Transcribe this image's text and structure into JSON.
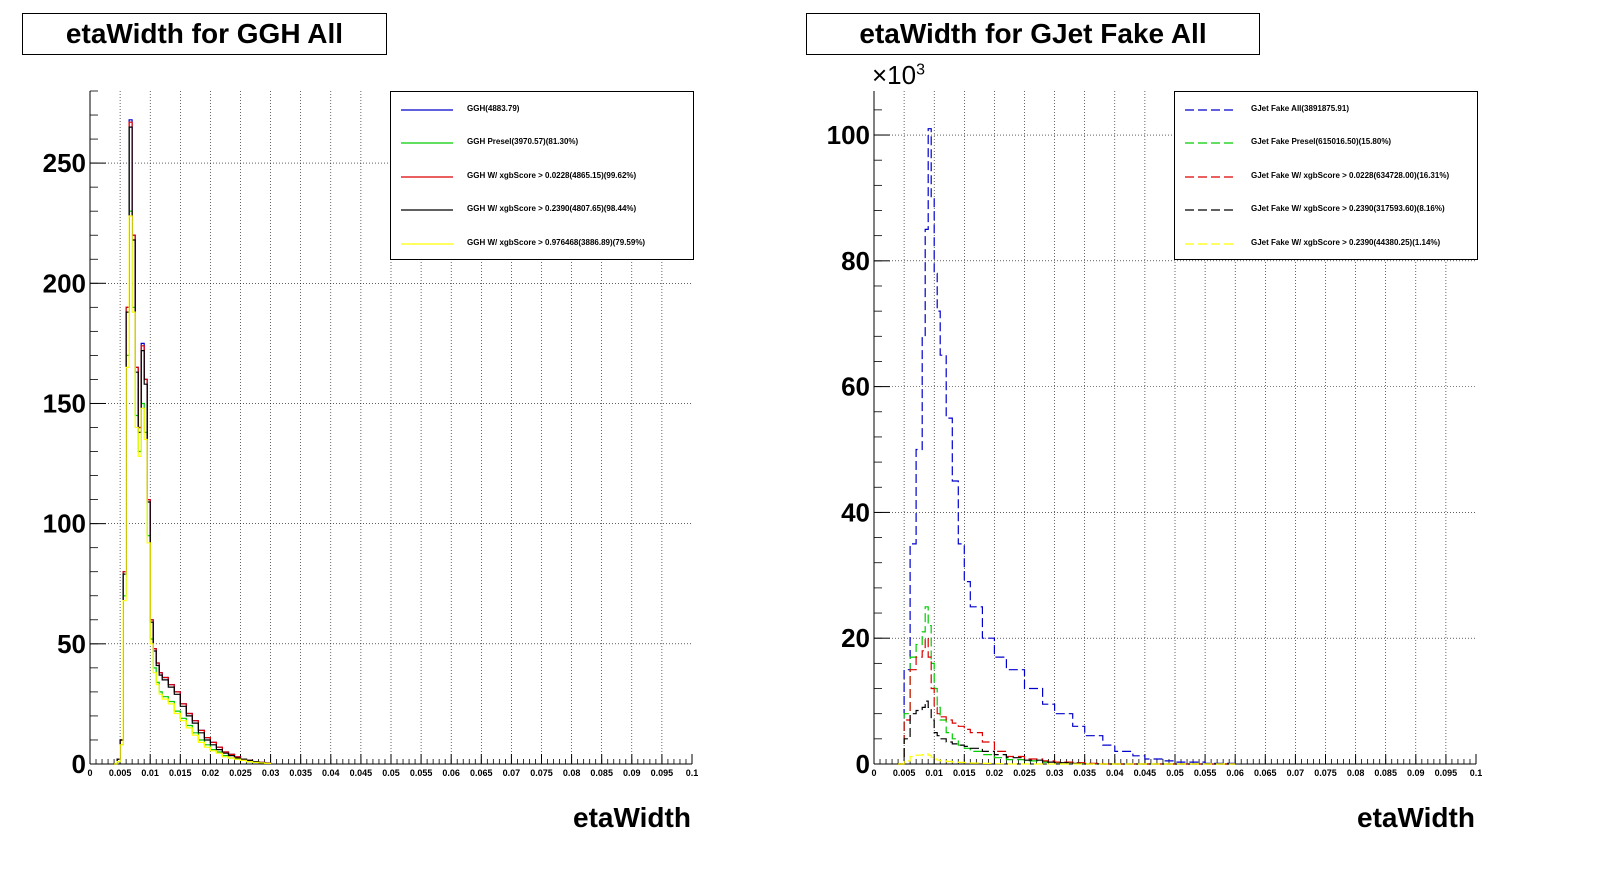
{
  "chart_data": [
    {
      "type": "line",
      "title": "etaWidth for GGH All",
      "xlabel": "etaWidth",
      "ylabel": "",
      "xlim": [
        0,
        0.1
      ],
      "ylim": [
        0,
        280
      ],
      "y_ticks": [
        0,
        50,
        100,
        150,
        200,
        250
      ],
      "x_ticks": [
        "0",
        "0.005",
        "0.01",
        "0.015",
        "0.02",
        "0.025",
        "0.03",
        "0.035",
        "0.04",
        "0.045",
        "0.05",
        "0.055",
        "0.06",
        "0.065",
        "0.07",
        "0.075",
        "0.08",
        "0.085",
        "0.09",
        "0.095",
        "0.1"
      ],
      "grid": true,
      "legend_position": "top-right",
      "x": [
        0.004,
        0.0045,
        0.005,
        0.0055,
        0.006,
        0.0065,
        0.007,
        0.0075,
        0.008,
        0.0085,
        0.009,
        0.0095,
        0.01,
        0.0105,
        0.011,
        0.0115,
        0.012,
        0.013,
        0.014,
        0.015,
        0.016,
        0.017,
        0.018,
        0.019,
        0.02,
        0.021,
        0.022,
        0.023,
        0.024,
        0.025,
        0.026,
        0.027,
        0.028,
        0.029,
        0.03
      ],
      "series": [
        {
          "name": "GGH(4883.79)",
          "color": "#0000cc",
          "dashed": false,
          "values": [
            0,
            2,
            10,
            80,
            190,
            268,
            220,
            165,
            140,
            175,
            160,
            110,
            60,
            48,
            42,
            38,
            36,
            33,
            30,
            25,
            21,
            18,
            14,
            11,
            9,
            7,
            5,
            4,
            3,
            2,
            1.5,
            1,
            0.7,
            0.4,
            0
          ]
        },
        {
          "name": "GGH Presel(3970.57)(81.30%)",
          "color": "#00cc00",
          "dashed": false,
          "values": [
            0,
            1,
            8,
            70,
            170,
            230,
            190,
            145,
            130,
            150,
            138,
            95,
            52,
            40,
            34,
            30,
            28,
            26,
            22,
            19,
            16,
            13,
            10,
            8,
            6,
            5,
            3.5,
            2.5,
            2,
            1.5,
            1,
            0.7,
            0.5,
            0.3,
            0
          ]
        },
        {
          "name": "GGH W/ xgbScore > 0.0228(4865.15)(99.62%)",
          "color": "#dd0000",
          "dashed": false,
          "values": [
            0,
            2,
            10,
            80,
            190,
            267,
            220,
            165,
            140,
            174,
            160,
            110,
            60,
            48,
            42,
            38,
            36,
            33,
            30,
            25,
            21,
            18,
            14,
            11,
            9,
            7,
            5,
            4,
            3,
            2,
            1.5,
            1,
            0.7,
            0.4,
            0
          ]
        },
        {
          "name": "GGH W/ xgbScore > 0.2390(4807.65)(98.44%)",
          "color": "#000000",
          "dashed": false,
          "values": [
            0,
            2,
            10,
            79,
            188,
            265,
            218,
            163,
            138,
            172,
            158,
            109,
            59,
            47,
            41,
            37,
            35,
            32,
            29,
            24,
            20,
            17,
            13,
            10,
            8,
            6,
            4.5,
            3.5,
            2.5,
            2,
            1.5,
            1,
            0.6,
            0.3,
            0
          ]
        },
        {
          "name": "GGH W/ xgbScore > 0.976468(3886.89)(79.59%)",
          "color": "#ffff00",
          "dashed": false,
          "values": [
            0,
            1,
            8,
            68,
            165,
            228,
            188,
            140,
            128,
            148,
            135,
            92,
            50,
            38,
            33,
            29,
            27,
            25,
            21,
            18,
            15,
            12,
            9,
            7,
            5.5,
            4.5,
            3,
            2.5,
            2,
            1.5,
            1,
            0.7,
            0.5,
            0.3,
            0
          ]
        }
      ]
    },
    {
      "type": "line",
      "title": "etaWidth for GJet Fake All",
      "xlabel": "etaWidth",
      "ylabel": "",
      "y_multiplier": "×10",
      "y_multiplier_exp": "3",
      "xlim": [
        0,
        0.1
      ],
      "ylim": [
        0,
        107
      ],
      "y_ticks": [
        0,
        20,
        40,
        60,
        80,
        100
      ],
      "x_ticks": [
        "0",
        "0.005",
        "0.01",
        "0.015",
        "0.02",
        "0.025",
        "0.03",
        "0.035",
        "0.04",
        "0.045",
        "0.05",
        "0.055",
        "0.06",
        "0.065",
        "0.07",
        "0.075",
        "0.08",
        "0.085",
        "0.09",
        "0.095",
        "0.1"
      ],
      "grid": true,
      "legend_position": "top-right",
      "x": [
        0.004,
        0.005,
        0.006,
        0.007,
        0.008,
        0.0085,
        0.009,
        0.0095,
        0.01,
        0.0105,
        0.011,
        0.012,
        0.013,
        0.014,
        0.015,
        0.016,
        0.018,
        0.02,
        0.022,
        0.025,
        0.028,
        0.03,
        0.033,
        0.035,
        0.038,
        0.04,
        0.043,
        0.045,
        0.048,
        0.05,
        0.055,
        0.06
      ],
      "series": [
        {
          "name": "GJet Fake All(3891875.91)",
          "color": "#0000cc",
          "dashed": true,
          "values": [
            0,
            15,
            35,
            50,
            68,
            85,
            101,
            90,
            78,
            72,
            65,
            55,
            45,
            35,
            29,
            25,
            20,
            17,
            15,
            12,
            9.5,
            8,
            6,
            4.5,
            3,
            2,
            1.3,
            0.8,
            0.5,
            0.3,
            0.1,
            0
          ]
        },
        {
          "name": "GJet Fake Presel(615016.50)(15.80%)",
          "color": "#00cc00",
          "dashed": true,
          "values": [
            0,
            8,
            17,
            19,
            21,
            25,
            22,
            16,
            12,
            9,
            7,
            5,
            4,
            3,
            2.5,
            2,
            1.5,
            1,
            0.7,
            0.5,
            0.3,
            0.2,
            0.1,
            0.05,
            0,
            0,
            0,
            0,
            0,
            0,
            0,
            0
          ]
        },
        {
          "name": "GJet Fake W/ xgbScore > 0.0228(634728.00)(16.31%)",
          "color": "#dd0000",
          "dashed": true,
          "values": [
            0,
            7,
            15,
            17,
            18,
            20,
            17,
            12,
            9,
            8,
            7.5,
            7,
            6.5,
            6,
            5.5,
            5,
            3.5,
            2,
            1.2,
            0.8,
            0.5,
            0.3,
            0.2,
            0.1,
            0,
            0,
            0,
            0,
            0,
            0,
            0,
            0
          ]
        },
        {
          "name": "GJet Fake W/ xgbScore > 0.2390(317593.60)(8.16%)",
          "color": "#000000",
          "dashed": true,
          "values": [
            0,
            4,
            8,
            8.5,
            9,
            10,
            9,
            7,
            5,
            4.5,
            4,
            3.5,
            3.2,
            3,
            2.8,
            2.5,
            2,
            1.5,
            1,
            0.6,
            0.3,
            0.2,
            0.1,
            0,
            0,
            0,
            0,
            0,
            0,
            0,
            0,
            0
          ]
        },
        {
          "name": "GJet Fake W/ xgbScore > 0.2390(44380.25)(1.14%)",
          "color": "#ffff00",
          "dashed": true,
          "values": [
            0,
            0.5,
            1.2,
            1.4,
            1.5,
            1.6,
            1.4,
            1.1,
            0.8,
            0.6,
            0.5,
            0.4,
            0.3,
            0.25,
            0.2,
            0.15,
            0.1,
            0.05,
            0,
            0,
            0,
            0,
            0,
            0,
            0,
            0,
            0,
            0,
            0,
            0,
            0,
            0
          ]
        }
      ]
    }
  ]
}
